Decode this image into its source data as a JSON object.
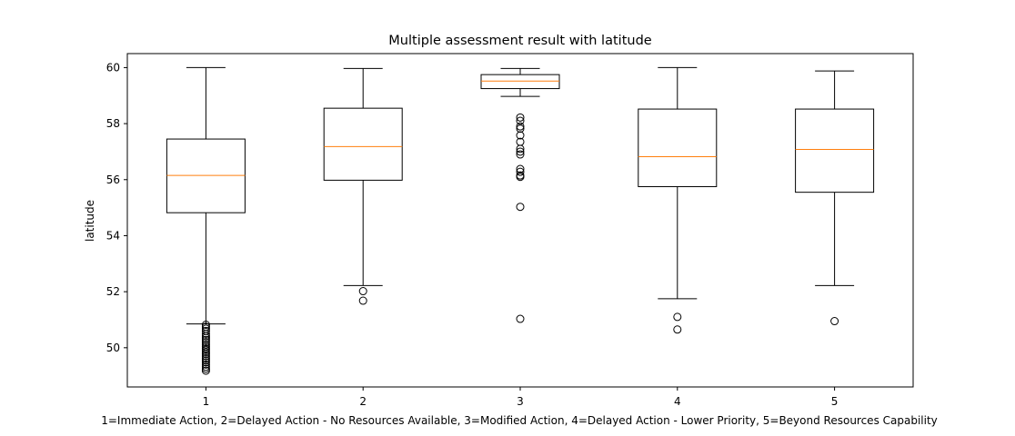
{
  "chart_data": {
    "type": "boxplot",
    "title": "Multiple assessment result with latitude",
    "xlabel": "1=Immediate Action, 2=Delayed Action - No Resources Available, 3=Modified Action, 4=Delayed Action - Lower Priority, 5=Beyond Resources Capability",
    "ylabel": "latitude",
    "categories": [
      "1",
      "2",
      "3",
      "4",
      "5"
    ],
    "ylim": [
      48.6,
      60.5
    ],
    "yticks": [
      50,
      52,
      54,
      56,
      58,
      60
    ],
    "ytick_labels": [
      "50",
      "52",
      "54",
      "56",
      "58",
      "60"
    ],
    "grid": false,
    "colors": {
      "box": "#000000",
      "median": "#ff7f0e",
      "background": "#ffffff"
    },
    "boxes": [
      {
        "category": "1",
        "whislo": 50.85,
        "q1": 54.82,
        "med": 56.15,
        "q3": 57.45,
        "whishi": 60.0,
        "fliers": [
          50.82,
          50.75,
          50.68,
          50.6,
          50.5,
          50.42,
          50.35,
          50.28,
          50.2,
          50.12,
          50.05,
          49.98,
          49.92,
          49.85,
          49.78,
          49.7,
          49.62,
          49.55,
          49.48,
          49.4,
          49.32,
          49.25,
          49.18
        ]
      },
      {
        "category": "2",
        "whislo": 52.22,
        "q1": 55.98,
        "med": 57.18,
        "q3": 58.55,
        "whishi": 59.97,
        "fliers": [
          52.02,
          51.68
        ]
      },
      {
        "category": "3",
        "whislo": 58.97,
        "q1": 59.25,
        "med": 59.52,
        "q3": 59.75,
        "whishi": 59.97,
        "fliers": [
          58.22,
          58.1,
          57.9,
          57.82,
          57.58,
          57.35,
          57.1,
          57.0,
          56.9,
          56.38,
          56.28,
          56.15,
          56.1,
          55.03,
          51.03
        ]
      },
      {
        "category": "4",
        "whislo": 51.75,
        "q1": 55.75,
        "med": 56.82,
        "q3": 58.52,
        "whishi": 60.0,
        "fliers": [
          51.1,
          50.65
        ]
      },
      {
        "category": "5",
        "whislo": 52.22,
        "q1": 55.55,
        "med": 57.08,
        "q3": 58.52,
        "whishi": 59.88,
        "fliers": [
          50.95
        ]
      }
    ]
  }
}
